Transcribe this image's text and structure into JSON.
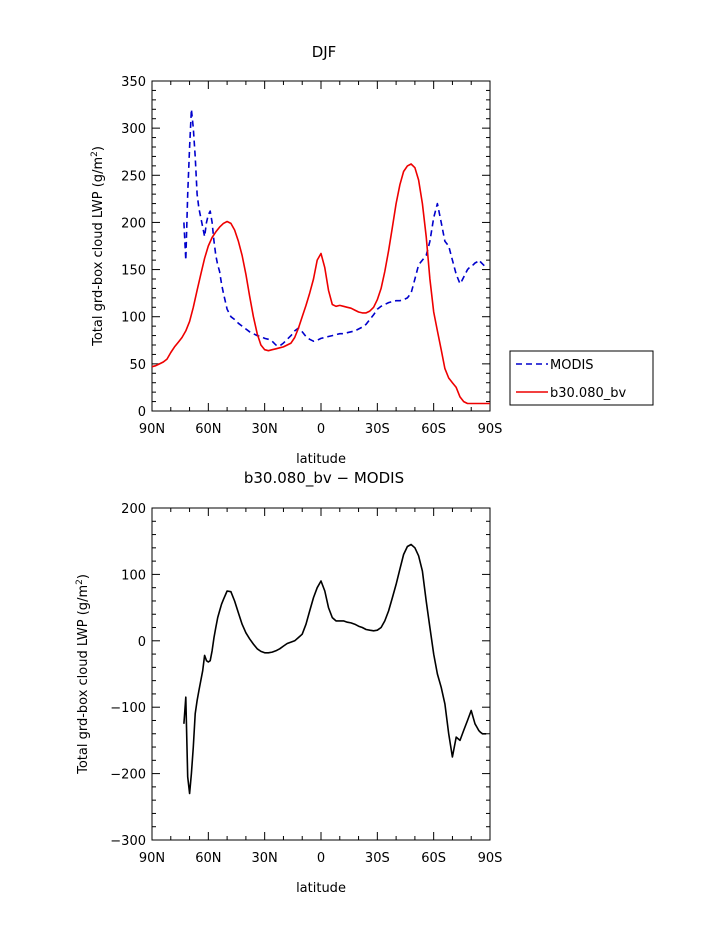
{
  "chart_data": [
    {
      "type": "line",
      "title": "DJF",
      "xlabel": "latitude",
      "ylabel": "Total grd-box cloud LWP (g/m",
      "ylabel_sup": "2",
      "ylabel_end": ")",
      "xlim": [
        90,
        -90
      ],
      "ylim": [
        0,
        350
      ],
      "xticks": [
        90,
        60,
        30,
        0,
        -30,
        -60,
        -90
      ],
      "xtick_labels": [
        "90N",
        "60N",
        "30N",
        "0",
        "30S",
        "60S",
        "90S"
      ],
      "yticks": [
        0,
        50,
        100,
        150,
        200,
        250,
        300,
        350
      ],
      "ytick_labels": [
        "0",
        "50",
        "100",
        "150",
        "200",
        "250",
        "300",
        "350"
      ],
      "legend_position": "right",
      "series": [
        {
          "name": "MODIS",
          "color": "#0000cc",
          "dash": "dashed",
          "x": [
            73,
            72,
            71,
            70,
            69,
            68,
            67,
            66,
            65,
            64,
            63,
            62,
            61,
            60,
            59,
            58,
            57,
            56,
            55,
            54,
            53,
            52,
            50,
            48,
            46,
            44,
            42,
            40,
            38,
            36,
            34,
            32,
            30,
            28,
            26,
            24,
            22,
            20,
            18,
            16,
            14,
            12,
            10,
            8,
            6,
            4,
            2,
            0,
            -2,
            -4,
            -6,
            -8,
            -10,
            -12,
            -14,
            -16,
            -18,
            -20,
            -22,
            -24,
            -26,
            -28,
            -30,
            -32,
            -34,
            -36,
            -38,
            -40,
            -42,
            -44,
            -46,
            -48,
            -50,
            -52,
            -54,
            -56,
            -58,
            -60,
            -62,
            -64,
            -66,
            -68,
            -70,
            -72,
            -74,
            -75,
            -76,
            -77,
            -78,
            -79,
            -80,
            -81,
            -82,
            -83,
            -84,
            -85,
            -86,
            -88
          ],
          "y": [
            200,
            160,
            230,
            280,
            320,
            300,
            270,
            230,
            215,
            205,
            195,
            185,
            200,
            208,
            212,
            200,
            180,
            165,
            155,
            148,
            135,
            125,
            108,
            100,
            97,
            93,
            90,
            87,
            84,
            82,
            80,
            79,
            77,
            76,
            74,
            70,
            69,
            72,
            76,
            80,
            85,
            88,
            84,
            79,
            76,
            74,
            75,
            77,
            78,
            79,
            80,
            81,
            82,
            82,
            83,
            84,
            85,
            87,
            89,
            92,
            97,
            102,
            108,
            111,
            113,
            115,
            116,
            117,
            117,
            118,
            120,
            125,
            140,
            155,
            160,
            165,
            180,
            205,
            220,
            200,
            180,
            175,
            160,
            145,
            135,
            138,
            142,
            146,
            150,
            152,
            154,
            155,
            157,
            158,
            160,
            158,
            156,
            152
          ]
        },
        {
          "name": "b30.080_bv",
          "color": "#ee0000",
          "dash": "solid",
          "x": [
            90,
            88,
            86,
            84,
            82,
            80,
            78,
            76,
            74,
            72,
            70,
            68,
            66,
            64,
            62,
            60,
            58,
            56,
            54,
            52,
            50,
            48,
            46,
            44,
            42,
            40,
            38,
            36,
            34,
            32,
            30,
            28,
            26,
            24,
            22,
            20,
            18,
            16,
            14,
            12,
            10,
            8,
            6,
            4,
            2,
            0,
            -2,
            -4,
            -6,
            -8,
            -10,
            -12,
            -14,
            -16,
            -18,
            -20,
            -22,
            -24,
            -26,
            -28,
            -30,
            -32,
            -34,
            -36,
            -38,
            -40,
            -42,
            -44,
            -46,
            -48,
            -50,
            -52,
            -54,
            -56,
            -58,
            -60,
            -62,
            -64,
            -66,
            -68,
            -70,
            -72,
            -74,
            -76,
            -78,
            -80,
            -82,
            -84,
            -86,
            -88,
            -90
          ],
          "y": [
            47,
            48,
            50,
            52,
            55,
            62,
            68,
            73,
            78,
            85,
            95,
            110,
            128,
            145,
            162,
            175,
            184,
            190,
            195,
            199,
            201,
            199,
            192,
            180,
            165,
            145,
            122,
            100,
            82,
            70,
            65,
            64,
            65,
            66,
            67,
            68,
            70,
            72,
            78,
            88,
            100,
            112,
            125,
            140,
            160,
            167,
            152,
            128,
            113,
            111,
            112,
            111,
            110,
            109,
            107,
            105,
            104,
            104,
            106,
            110,
            118,
            130,
            148,
            170,
            195,
            220,
            240,
            254,
            260,
            262,
            258,
            245,
            220,
            185,
            140,
            105,
            85,
            65,
            45,
            35,
            30,
            25,
            15,
            10,
            8,
            8,
            8,
            8,
            8,
            8,
            8
          ]
        }
      ]
    },
    {
      "type": "line",
      "title": "b30.080_bv − MODIS",
      "xlabel": "latitude",
      "ylabel": "Total grd-box cloud LWP (g/m",
      "ylabel_sup": "2",
      "ylabel_end": ")",
      "xlim": [
        90,
        -90
      ],
      "ylim": [
        -300,
        200
      ],
      "xticks": [
        90,
        60,
        30,
        0,
        -30,
        -60,
        -90
      ],
      "xtick_labels": [
        "90N",
        "60N",
        "30N",
        "0",
        "30S",
        "60S",
        "90S"
      ],
      "yticks": [
        -300,
        -200,
        -100,
        0,
        100,
        200
      ],
      "ytick_labels": [
        "−300",
        "−200",
        "−100",
        "0",
        "100",
        "200"
      ],
      "series": [
        {
          "color": "#000000",
          "dash": "solid",
          "x": [
            73,
            72,
            71,
            70,
            69,
            68,
            67,
            66,
            65,
            64,
            63,
            62,
            61,
            60,
            59,
            58,
            57,
            56,
            55,
            54,
            53,
            52,
            50,
            48,
            46,
            44,
            42,
            40,
            38,
            36,
            34,
            32,
            30,
            28,
            26,
            24,
            22,
            20,
            18,
            16,
            14,
            12,
            10,
            8,
            6,
            4,
            2,
            0,
            -2,
            -4,
            -6,
            -8,
            -10,
            -12,
            -14,
            -16,
            -18,
            -20,
            -22,
            -24,
            -26,
            -28,
            -30,
            -32,
            -34,
            -36,
            -38,
            -40,
            -42,
            -44,
            -46,
            -48,
            -50,
            -52,
            -54,
            -56,
            -58,
            -60,
            -62,
            -64,
            -66,
            -68,
            -70,
            -72,
            -74,
            -76,
            -78,
            -80,
            -81,
            -82,
            -83,
            -84,
            -85,
            -86,
            -87,
            -88
          ],
          "y": [
            -125,
            -85,
            -205,
            -230,
            -200,
            -160,
            -110,
            -90,
            -75,
            -60,
            -45,
            -22,
            -30,
            -32,
            -30,
            -15,
            5,
            20,
            35,
            45,
            55,
            62,
            75,
            74,
            60,
            42,
            25,
            12,
            3,
            -5,
            -12,
            -16,
            -18,
            -18,
            -17,
            -15,
            -12,
            -8,
            -4,
            -2,
            0,
            5,
            10,
            25,
            45,
            65,
            80,
            90,
            75,
            50,
            35,
            30,
            30,
            30,
            28,
            27,
            25,
            22,
            20,
            17,
            16,
            15,
            16,
            20,
            30,
            45,
            65,
            85,
            108,
            130,
            142,
            145,
            140,
            128,
            105,
            60,
            20,
            -20,
            -50,
            -70,
            -95,
            -140,
            -175,
            -145,
            -150,
            -135,
            -120,
            -105,
            -115,
            -125,
            -130,
            -135,
            -138,
            -140,
            -140,
            -140
          ]
        }
      ]
    }
  ]
}
